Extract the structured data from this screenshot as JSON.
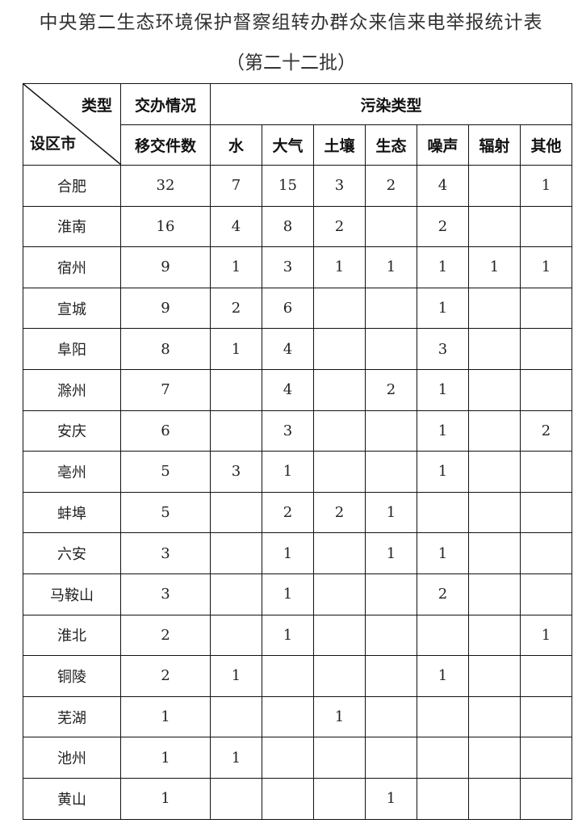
{
  "title": "中央第二生态环境保护督察组转办群众来信来电举报统计表",
  "subtitle": "（第二十二批）",
  "header": {
    "diag_top": "类型",
    "diag_bottom": "设区市",
    "group1": "交办情况",
    "group2": "污染类型",
    "count": "移交件数",
    "types": [
      "水",
      "大气",
      "土壤",
      "生态",
      "噪声",
      "辐射",
      "其他"
    ]
  },
  "rows": [
    {
      "city": "合肥",
      "count": "32",
      "v": [
        "7",
        "15",
        "3",
        "2",
        "4",
        "",
        "1"
      ]
    },
    {
      "city": "淮南",
      "count": "16",
      "v": [
        "4",
        "8",
        "2",
        "",
        "2",
        "",
        ""
      ]
    },
    {
      "city": "宿州",
      "count": "9",
      "v": [
        "1",
        "3",
        "1",
        "1",
        "1",
        "1",
        "1"
      ]
    },
    {
      "city": "宣城",
      "count": "9",
      "v": [
        "2",
        "6",
        "",
        "",
        "1",
        "",
        ""
      ]
    },
    {
      "city": "阜阳",
      "count": "8",
      "v": [
        "1",
        "4",
        "",
        "",
        "3",
        "",
        ""
      ]
    },
    {
      "city": "滁州",
      "count": "7",
      "v": [
        "",
        "4",
        "",
        "2",
        "1",
        "",
        ""
      ]
    },
    {
      "city": "安庆",
      "count": "6",
      "v": [
        "",
        "3",
        "",
        "",
        "1",
        "",
        "2"
      ]
    },
    {
      "city": "亳州",
      "count": "5",
      "v": [
        "3",
        "1",
        "",
        "",
        "1",
        "",
        ""
      ]
    },
    {
      "city": "蚌埠",
      "count": "5",
      "v": [
        "",
        "2",
        "2",
        "1",
        "",
        "",
        ""
      ]
    },
    {
      "city": "六安",
      "count": "3",
      "v": [
        "",
        "1",
        "",
        "1",
        "1",
        "",
        ""
      ]
    },
    {
      "city": "马鞍山",
      "count": "3",
      "v": [
        "",
        "1",
        "",
        "",
        "2",
        "",
        ""
      ]
    },
    {
      "city": "淮北",
      "count": "2",
      "v": [
        "",
        "1",
        "",
        "",
        "",
        "",
        "1"
      ]
    },
    {
      "city": "铜陵",
      "count": "2",
      "v": [
        "1",
        "",
        "",
        "",
        "1",
        "",
        ""
      ]
    },
    {
      "city": "芜湖",
      "count": "1",
      "v": [
        "",
        "",
        "1",
        "",
        "",
        "",
        ""
      ]
    },
    {
      "city": "池州",
      "count": "1",
      "v": [
        "1",
        "",
        "",
        "",
        "",
        "",
        ""
      ]
    },
    {
      "city": "黄山",
      "count": "1",
      "v": [
        "",
        "",
        "",
        "1",
        "",
        "",
        ""
      ]
    }
  ]
}
